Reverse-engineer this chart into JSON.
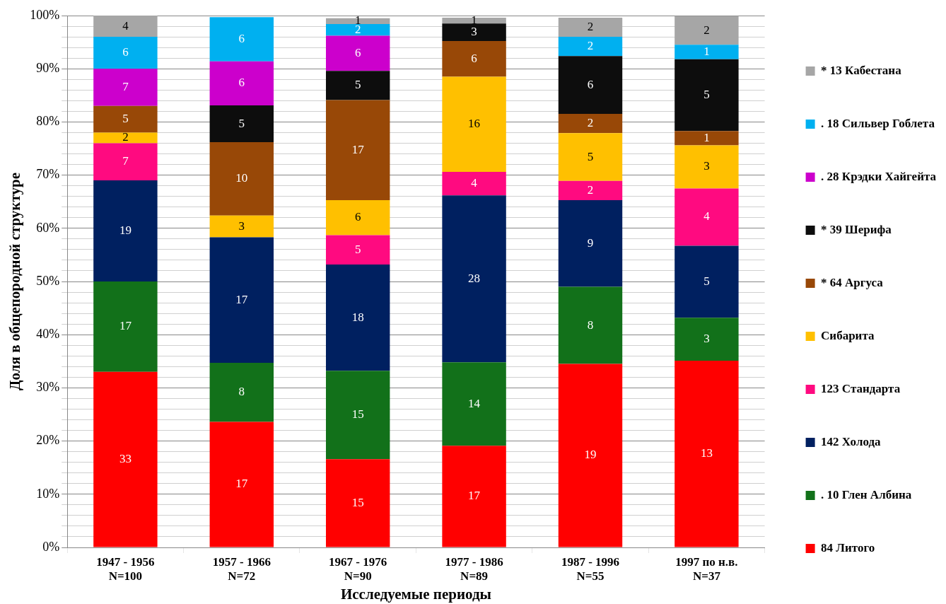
{
  "chart_data": {
    "type": "bar",
    "stacked": true,
    "xlabel": "Исследуемые периоды",
    "ylabel": "Доля в общепородной структуре",
    "categories": [
      "1947 - 1956\nN=100",
      "1957 - 1966\nN=72",
      "1967 - 1976\nN=90",
      "1977 - 1986\nN=89",
      "1987 - 1996\nN=55",
      "1997 по н.в.\nN=37"
    ],
    "series": [
      {
        "name": "84 Литого",
        "color": "#ff0000",
        "values": [
          33,
          23.6,
          16.6,
          19.1,
          34.5,
          35.1
        ]
      },
      {
        "name": ". 10 Глен Албина",
        "color": "#12711a",
        "values": [
          17,
          11.1,
          16.6,
          15.7,
          14.5,
          8.1
        ]
      },
      {
        "name": "142 Холода",
        "color": "#002060",
        "values": [
          19,
          23.6,
          20,
          31.4,
          16.3,
          13.5
        ]
      },
      {
        "name": "123 Стандарта",
        "color": "#ff0a80",
        "values": [
          7,
          null,
          5.5,
          4.4,
          3.6,
          10.8
        ]
      },
      {
        "name": "Сибарита",
        "color": "#ffc000",
        "values": [
          2,
          4.1,
          6.6,
          17.9,
          9.0,
          8.1
        ]
      },
      {
        "name": "* 64 Аргуса",
        "color": "#984807",
        "values": [
          5,
          13.8,
          18.8,
          6.7,
          3.6,
          2.7
        ]
      },
      {
        "name": "* 39 Шерифа",
        "color": "#0d0d0d",
        "values": [
          null,
          6.9,
          5.5,
          3.3,
          10.9,
          13.5
        ]
      },
      {
        "name": ". 28 Крэдки Хайгейта",
        "color": "#cc00cc",
        "values": [
          7,
          8.3,
          6.6,
          null,
          null,
          null
        ]
      },
      {
        "name": ". 18 Сильвер Гоблета",
        "color": "#00b0f0",
        "values": [
          6,
          8.3,
          2.2,
          null,
          3.6,
          2.7
        ]
      },
      {
        "name": "* 13 Кабестана",
        "color": "#a6a6a6",
        "values": [
          4,
          null,
          1.1,
          1.1,
          3.6,
          5.4
        ]
      }
    ],
    "annotations": [
      "33",
      "17",
      "19",
      "7",
      "2",
      "5",
      "7",
      "6",
      "4",
      "17",
      "8",
      "17",
      "3",
      "10",
      "5",
      "6",
      "6",
      "15",
      "15",
      "18",
      "5",
      "6",
      "17",
      "5",
      "6",
      "2",
      "1",
      "17",
      "14",
      "28",
      "4",
      "16",
      "6",
      "3",
      "1",
      "19",
      "8",
      "9",
      "2",
      "5",
      "2",
      "6",
      "2",
      "2",
      "13",
      "3",
      "5",
      "4",
      "3",
      "1",
      "5",
      "1",
      "2"
    ],
    "ylim": [
      0,
      100
    ],
    "yticks": [
      {
        "value": 0,
        "label": "0%"
      },
      {
        "value": 2,
        "label": null
      },
      {
        "value": 4,
        "label": null
      },
      {
        "value": 6,
        "label": null
      },
      {
        "value": 8,
        "label": null
      },
      {
        "value": 10,
        "label": "10%"
      },
      {
        "value": 12,
        "label": null
      },
      {
        "value": 14,
        "label": null
      },
      {
        "value": 16,
        "label": null
      },
      {
        "value": 18,
        "label": null
      },
      {
        "value": 20,
        "label": "20%"
      },
      {
        "value": 22,
        "label": null
      },
      {
        "value": 24,
        "label": null
      },
      {
        "value": 26,
        "label": null
      },
      {
        "value": 28,
        "label": null
      },
      {
        "value": 30,
        "label": "30%"
      },
      {
        "value": 32,
        "label": null
      },
      {
        "value": 34,
        "label": null
      },
      {
        "value": 36,
        "label": null
      },
      {
        "value": 38,
        "label": null
      },
      {
        "value": 40,
        "label": "40%"
      },
      {
        "value": 42,
        "label": null
      },
      {
        "value": 44,
        "label": null
      },
      {
        "value": 46,
        "label": null
      },
      {
        "value": 48,
        "label": null
      },
      {
        "value": 50,
        "label": "50%"
      },
      {
        "value": 52,
        "label": null
      },
      {
        "value": 54,
        "label": null
      },
      {
        "value": 56,
        "label": null
      },
      {
        "value": 58,
        "label": null
      },
      {
        "value": 60,
        "label": "60%"
      },
      {
        "value": 62,
        "label": null
      },
      {
        "value": 64,
        "label": null
      },
      {
        "value": 66,
        "label": null
      },
      {
        "value": 68,
        "label": null
      },
      {
        "value": 70,
        "label": "70%"
      },
      {
        "value": 72,
        "label": null
      },
      {
        "value": 74,
        "label": null
      },
      {
        "value": 76,
        "label": null
      },
      {
        "value": 78,
        "label": null
      },
      {
        "value": 80,
        "label": "80%"
      },
      {
        "value": 82,
        "label": null
      },
      {
        "value": 84,
        "label": null
      },
      {
        "value": 86,
        "label": null
      },
      {
        "value": 88,
        "label": null
      },
      {
        "value": 90,
        "label": "90%"
      },
      {
        "value": 92,
        "label": null
      },
      {
        "value": 94,
        "label": null
      },
      {
        "value": 96,
        "label": null
      },
      {
        "value": 98,
        "label": null
      },
      {
        "value": 100,
        "label": "100%"
      }
    ],
    "grid": true,
    "legend": "right"
  }
}
